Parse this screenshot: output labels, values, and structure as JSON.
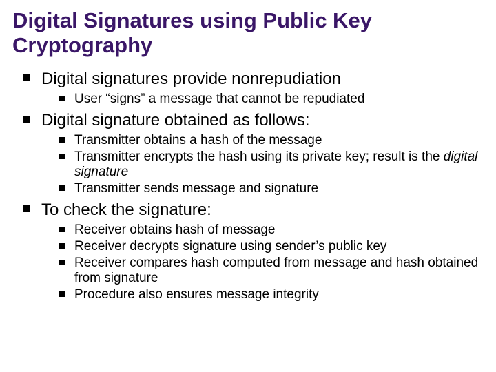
{
  "title_color": "#3a1667",
  "title_fontsize": 31,
  "l1_fontsize": 24,
  "l2_fontsize": 19,
  "title": "Digital Signatures using Public Key Cryptography",
  "sections": [
    {
      "heading": "Digital signatures provide nonrepudiation",
      "items": [
        {
          "text": "User “signs” a message that cannot be repudiated"
        }
      ]
    },
    {
      "heading": "Digital signature obtained as follows:",
      "items": [
        {
          "text": "Transmitter obtains a hash of the message"
        },
        {
          "pre": "Transmitter encrypts the hash using its private key;  result is the ",
          "em": "digital signature"
        },
        {
          "text": "Transmitter sends message and signature"
        }
      ]
    },
    {
      "heading": "To check the signature:",
      "items": [
        {
          "text": "Receiver obtains hash of message"
        },
        {
          "text": "Receiver decrypts signature using sender’s public key"
        },
        {
          "text": "Receiver compares hash computed from message and hash obtained from signature"
        },
        {
          "text": "Procedure also ensures message integrity"
        }
      ]
    }
  ]
}
